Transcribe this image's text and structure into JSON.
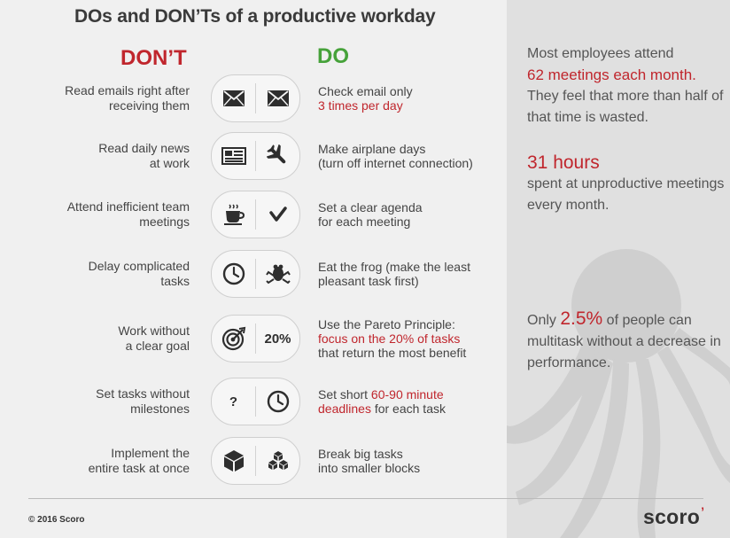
{
  "title": "DOs and DON’Ts of a productive workday",
  "headers": {
    "dont": "DON’T",
    "do": "DO"
  },
  "rows": [
    {
      "dont": "Read emails right after\nreceiving them",
      "icons": [
        "envelope-icon",
        "envelope-icon"
      ],
      "do_plain": "Check email only",
      "do_red": "3 times per day",
      "do_tail": ""
    },
    {
      "dont": "Read daily news\nat work",
      "icons": [
        "newspaper-icon",
        "airplane-icon"
      ],
      "do_plain": "Make airplane days",
      "do_red": "",
      "do_tail": "(turn off internet connection)"
    },
    {
      "dont": "Attend inefficient team\nmeetings",
      "icons": [
        "coffee-cup-icon",
        "checkmark-icon"
      ],
      "do_plain": "Set a clear agenda",
      "do_red": "",
      "do_tail": "for each meeting"
    },
    {
      "dont": "Delay complicated\ntasks",
      "icons": [
        "clock-icon",
        "frog-icon"
      ],
      "do_plain": "Eat the frog (make the least",
      "do_red": "",
      "do_tail": "pleasant task first)"
    },
    {
      "dont": "Work without\na clear goal",
      "icons": [
        "target-icon",
        "20%"
      ],
      "do_plain": "Use the Pareto Principle:",
      "do_red": "focus on the 20% of tasks",
      "do_tail": "that return the most benefit"
    },
    {
      "dont": "Set tasks without\nmilestones",
      "icons": [
        "question-mark-icon",
        "clock-icon"
      ],
      "do_plain": "Set short ",
      "do_red": "60-90 minute",
      "do_red2": "deadlines",
      "do_tail": " for each task"
    },
    {
      "dont": "Implement the\nentire task at once",
      "icons": [
        "cube-icon",
        "stacked-cubes-icon"
      ],
      "do_plain": "Break big tasks",
      "do_red": "",
      "do_tail": "into smaller blocks"
    }
  ],
  "facts": [
    {
      "lead": "Most employees attend",
      "highlight": "62 meetings each month.",
      "rest": "They feel that more than half of that time is wasted."
    },
    {
      "highlight": "31 hours",
      "rest": "spent at unproductive meetings every month."
    },
    {
      "lead": "Only ",
      "highlight": "2.5%",
      "rest": " of people can multitask without a decrease in performance."
    }
  ],
  "footer": {
    "copyright": "© 2016 Scoro",
    "logo": "scoro",
    "logo_mark": "’"
  },
  "colors": {
    "red": "#c0262d",
    "green": "#46a23a",
    "text": "#3a3a3a",
    "panel": "#e0e0e0",
    "background": "#f0f0f0"
  }
}
